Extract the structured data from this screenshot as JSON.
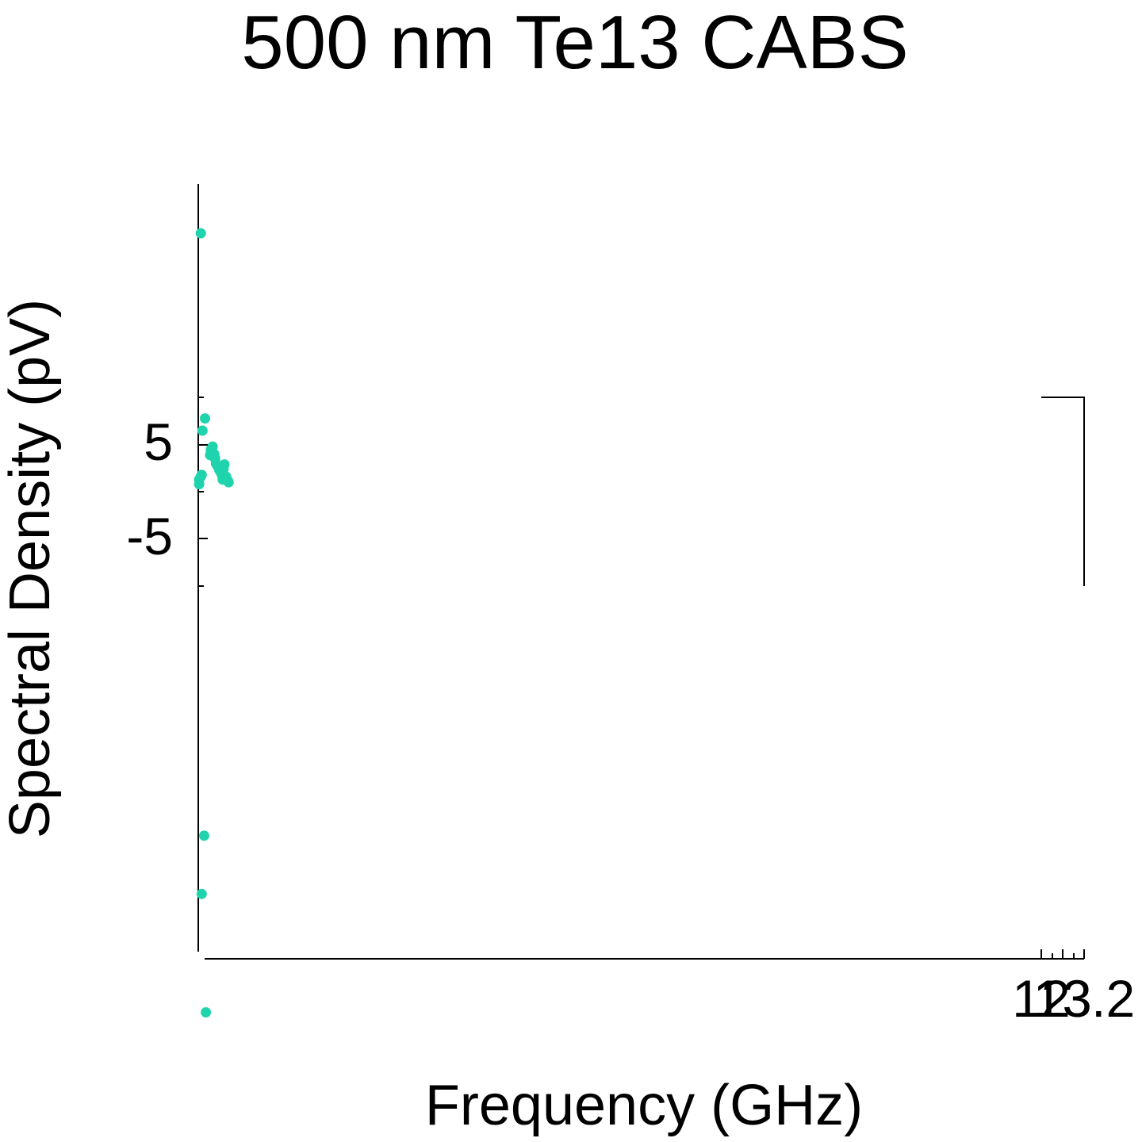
{
  "chart_data": {
    "type": "scatter",
    "title": "500 nm Te13 CABS",
    "xlabel": "Frequency (GHz)",
    "ylabel": "Spectral Density (pV)",
    "y_tick_labels": [
      "5",
      "-5"
    ],
    "x_tick_labels": [
      "12",
      "13",
      "13.2"
    ],
    "series": [
      {
        "color": "#1fd4ad",
        "points": [
          {
            "x": 12.001,
            "y": 0.8
          },
          {
            "x": 12.001,
            "y": 1.3
          },
          {
            "x": 12.003,
            "y": 1.6
          },
          {
            "x": 12.004,
            "y": 1.8
          },
          {
            "x": 12.014,
            "y": 3.9
          },
          {
            "x": 12.015,
            "y": 4.2
          },
          {
            "x": 12.015,
            "y": 4.5
          },
          {
            "x": 12.017,
            "y": 4.8
          },
          {
            "x": 12.019,
            "y": 4.0
          },
          {
            "x": 12.02,
            "y": 3.5
          },
          {
            "x": 12.021,
            "y": 3.0
          },
          {
            "x": 12.023,
            "y": 2.7
          },
          {
            "x": 12.025,
            "y": 2.3
          },
          {
            "x": 12.027,
            "y": 2.0
          },
          {
            "x": 12.028,
            "y": 1.8
          },
          {
            "x": 12.029,
            "y": 1.3
          },
          {
            "x": 12.03,
            "y": 2.4
          },
          {
            "x": 12.031,
            "y": 2.9
          },
          {
            "x": 12.033,
            "y": 1.6
          },
          {
            "x": 12.034,
            "y": 1.3
          },
          {
            "x": 12.035,
            "y": 1.2
          },
          {
            "x": 12.036,
            "y": 1.0
          },
          {
            "x": 12.003,
            "y": 27.5
          },
          {
            "x": 12.005,
            "y": 6.5
          },
          {
            "x": 12.008,
            "y": 7.8
          },
          {
            "x": 12.007,
            "y": -36.6
          },
          {
            "x": 12.004,
            "y": -42.8
          },
          {
            "x": 12.009,
            "y": -55.4
          }
        ]
      }
    ]
  }
}
